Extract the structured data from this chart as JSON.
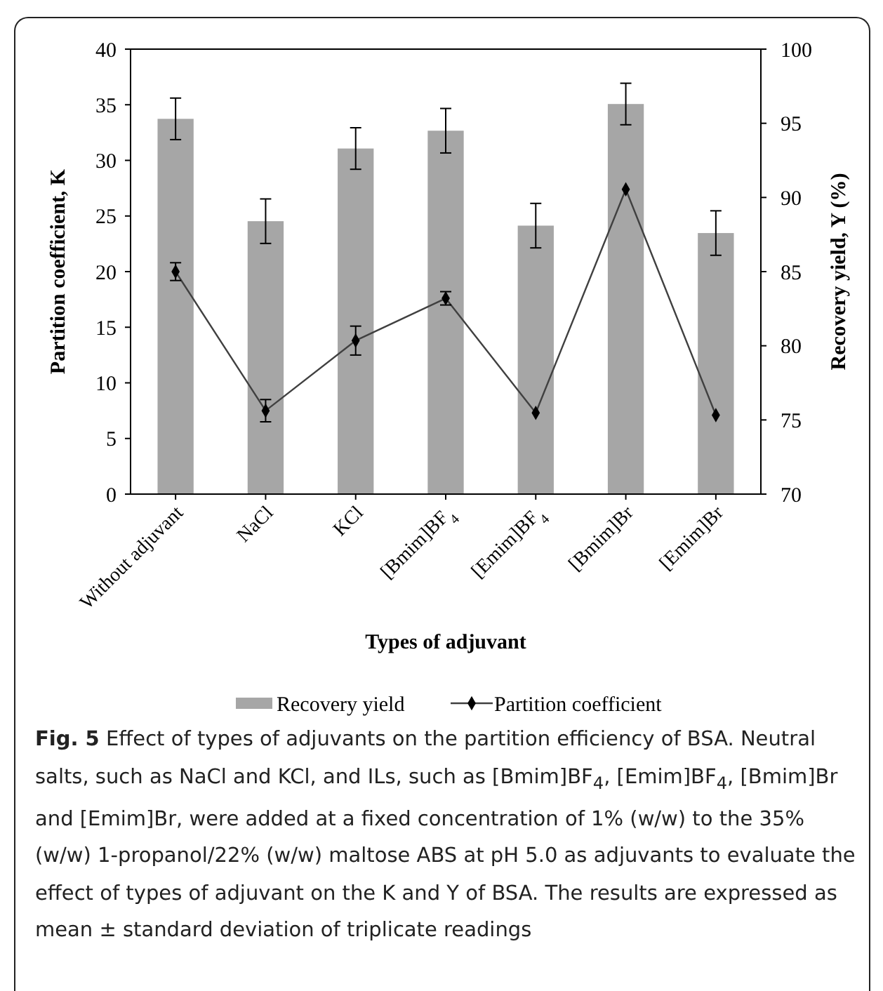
{
  "chart_data": {
    "type": "bar",
    "xlabel": "Types of adjuvant",
    "ylabel": "Partition  coefficient, K",
    "y2label": "Recovery yield, Y (%)",
    "categories": [
      "Without adjuvant",
      "NaCl",
      "KCl",
      "[Bmim]BF$_{4}$",
      "[Emim]BF$_{4}$",
      "[Bmim]Br",
      "[Emim]Br"
    ],
    "series": [
      {
        "name": "Recovery yield",
        "axis": "y2",
        "color": "#a6a6a6",
        "values": [
          95.3,
          88.4,
          93.3,
          94.5,
          88.1,
          96.3,
          87.6
        ],
        "errors": [
          1.4,
          1.5,
          1.4,
          1.5,
          1.5,
          1.4,
          1.5
        ]
      },
      {
        "name": "Partition coefficient",
        "type": "line",
        "color": "#404040",
        "marker": "diamond",
        "values": [
          20.0,
          7.5,
          13.8,
          17.6,
          7.3,
          27.4,
          7.1
        ],
        "errors": [
          0.8,
          1.0,
          1.3,
          0.6,
          null,
          null,
          null
        ]
      }
    ],
    "ylim": [
      0,
      40
    ],
    "yticks": [
      0,
      5,
      10,
      15,
      20,
      25,
      30,
      35,
      40
    ],
    "y2lim": [
      70,
      100
    ],
    "y2ticks": [
      70,
      75,
      80,
      85,
      90,
      95,
      100
    ],
    "grid": false,
    "legend": "bottom",
    "annotations": [
      "Fig. 5 Effect of types of adjuvants on the partition efficiency of BSA. Neutral salts, such as NaCl and KCl, and ILs, such as [Bmim]BF$_{4}$, [Emim]BF$_{4}$, [Bmim]Br and [Emim]Br, were added at a fixed concentration of 1% (w/w) to the 35% (w/w) 1-propanol/22% (w/w) maltose ABS at pH 5.0 as adjuvants to evaluate the effect of types of adjuvant on the K and Y of BSA. The results are expressed as mean ± standard deviation of triplicate readings"
    ]
  }
}
